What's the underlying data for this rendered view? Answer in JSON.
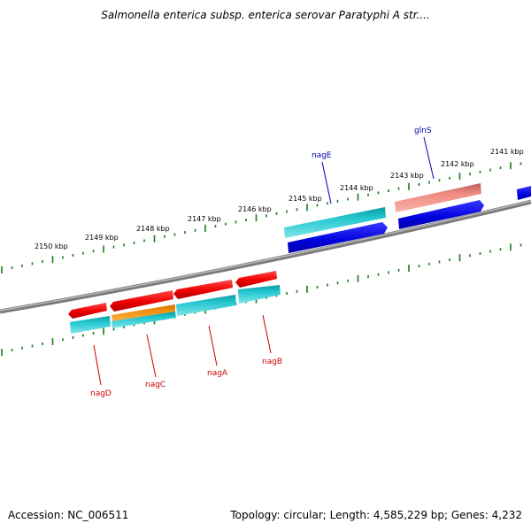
{
  "title": "Salmonella enterica subsp. enterica serovar Paratyphi A str....",
  "footer": {
    "accession": "Accession: NC_006511",
    "summary": "Topology: circular; Length: 4,585,229 bp; Genes: 4,232"
  },
  "kbp_labels": [
    "2150 kbp",
    "2149 kbp",
    "2148 kbp",
    "2147 kbp",
    "2146 kbp",
    "2145 kbp",
    "2144 kbp",
    "2143 kbp",
    "2142 kbp",
    "2141 kbp"
  ],
  "gene_labels": [
    {
      "name": "nagD",
      "color": "#cc0000"
    },
    {
      "name": "nagC",
      "color": "#cc0000"
    },
    {
      "name": "nagA",
      "color": "#cc0000"
    },
    {
      "name": "nagB",
      "color": "#cc0000"
    },
    {
      "name": "nagE",
      "color": "#0000aa"
    },
    {
      "name": "glnS",
      "color": "#0000aa"
    }
  ],
  "colors": {
    "forward_cds": "#0000dd",
    "forward_gene": "#1cc0c8",
    "reverse_cds": "#ee0000",
    "reverse_gene": "#1cc0c8",
    "pseudo_gene": "#f08a80",
    "orange_cds": "#f39010",
    "tick": "#1a7a1a",
    "backbone": "#808080"
  }
}
